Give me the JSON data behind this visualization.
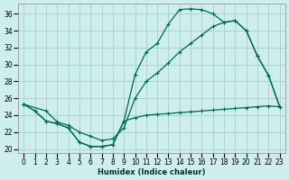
{
  "xlabel": "Humidex (Indice chaleur)",
  "bg_color": "#cdeeed",
  "grid_color": "#aad4d0",
  "line_color": "#006655",
  "xlim": [
    -0.5,
    23.5
  ],
  "ylim": [
    19.5,
    37.2
  ],
  "xticks": [
    0,
    1,
    2,
    3,
    4,
    5,
    6,
    7,
    8,
    9,
    10,
    11,
    12,
    13,
    14,
    15,
    16,
    17,
    18,
    19,
    20,
    21,
    22,
    23
  ],
  "yticks": [
    20,
    22,
    24,
    26,
    28,
    30,
    32,
    34,
    36
  ],
  "line1_x": [
    0,
    1,
    2,
    3,
    4,
    5,
    6,
    7,
    8,
    9,
    10,
    11,
    12,
    13,
    14,
    15,
    16,
    17,
    18,
    19,
    20,
    21,
    22,
    23
  ],
  "line1_y": [
    25.3,
    24.5,
    23.3,
    23.0,
    22.5,
    20.8,
    20.3,
    20.3,
    20.5,
    23.3,
    23.7,
    24.0,
    24.1,
    24.2,
    24.3,
    24.4,
    24.5,
    24.6,
    24.7,
    24.8,
    24.9,
    25.0,
    25.1,
    25.0
  ],
  "line2_x": [
    0,
    1,
    2,
    3,
    4,
    5,
    6,
    7,
    8,
    9,
    10,
    11,
    12,
    13,
    14,
    15,
    16,
    17,
    18,
    19,
    20,
    21,
    22,
    23
  ],
  "line2_y": [
    25.3,
    24.5,
    23.3,
    23.0,
    22.5,
    20.8,
    20.3,
    20.3,
    20.5,
    23.3,
    28.8,
    31.5,
    32.5,
    34.8,
    36.5,
    36.6,
    36.5,
    36.0,
    35.0,
    35.2,
    34.0,
    31.0,
    28.7,
    25.0
  ],
  "line3_x": [
    0,
    2,
    3,
    4,
    5,
    6,
    7,
    8,
    9,
    10,
    11,
    12,
    13,
    14,
    15,
    16,
    17,
    18,
    19,
    20,
    21,
    22,
    23
  ],
  "line3_y": [
    25.3,
    24.5,
    23.2,
    22.8,
    22.0,
    21.5,
    21.0,
    21.2,
    22.5,
    26.0,
    28.0,
    29.0,
    30.2,
    31.5,
    32.5,
    33.5,
    34.5,
    35.0,
    35.2,
    34.0,
    31.0,
    28.7,
    25.0
  ]
}
